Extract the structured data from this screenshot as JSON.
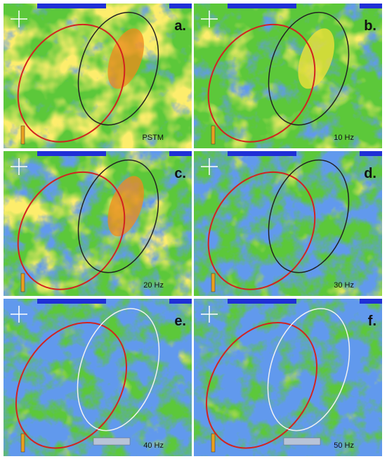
{
  "panels": [
    {
      "letter": "a.",
      "label": "PSTM"
    },
    {
      "letter": "b.",
      "label": "10 Hz"
    },
    {
      "letter": "c.",
      "label": "20 Hz"
    },
    {
      "letter": "d.",
      "label": "30 Hz"
    },
    {
      "letter": "e.",
      "label": "40 Hz"
    },
    {
      "letter": "f.",
      "label": "50 Hz"
    }
  ]
}
